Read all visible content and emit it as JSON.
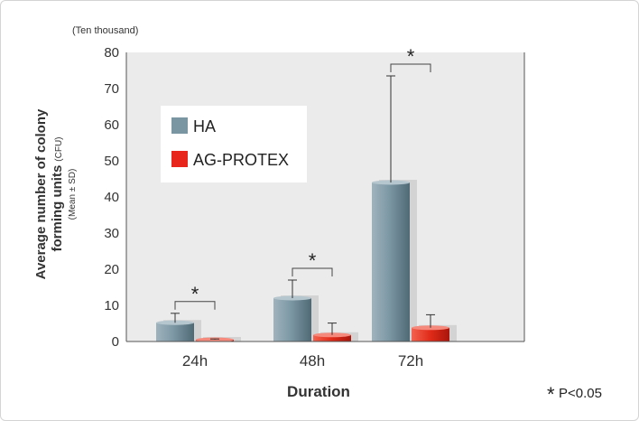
{
  "chart_data": {
    "type": "bar",
    "unit_label": "(Ten thousand)",
    "categories": [
      "24h",
      "48h",
      "72h"
    ],
    "series": [
      {
        "name": "HA",
        "color": "#7a96a3",
        "values": [
          5.2,
          12.0,
          44.0
        ],
        "errors": [
          2.6,
          5.0,
          29.5
        ]
      },
      {
        "name": "AG-PROTEX",
        "color": "#e8261c",
        "values": [
          0.5,
          1.8,
          3.8
        ],
        "errors": [
          0.2,
          3.3,
          3.6
        ]
      }
    ],
    "xlabel": "Duration",
    "ylabel_line1": "Average number of colony",
    "ylabel_line2": "forming units",
    "ylabel_unit": "(CFU)",
    "ylabel_sub": "(Mean ± SD)",
    "ylim": [
      0,
      80
    ],
    "yticks": [
      0,
      10,
      20,
      30,
      40,
      50,
      60,
      70,
      80
    ],
    "grid": false,
    "legend_position": "upper-left",
    "significance_mark": "*",
    "footnote": "P<0.05"
  }
}
